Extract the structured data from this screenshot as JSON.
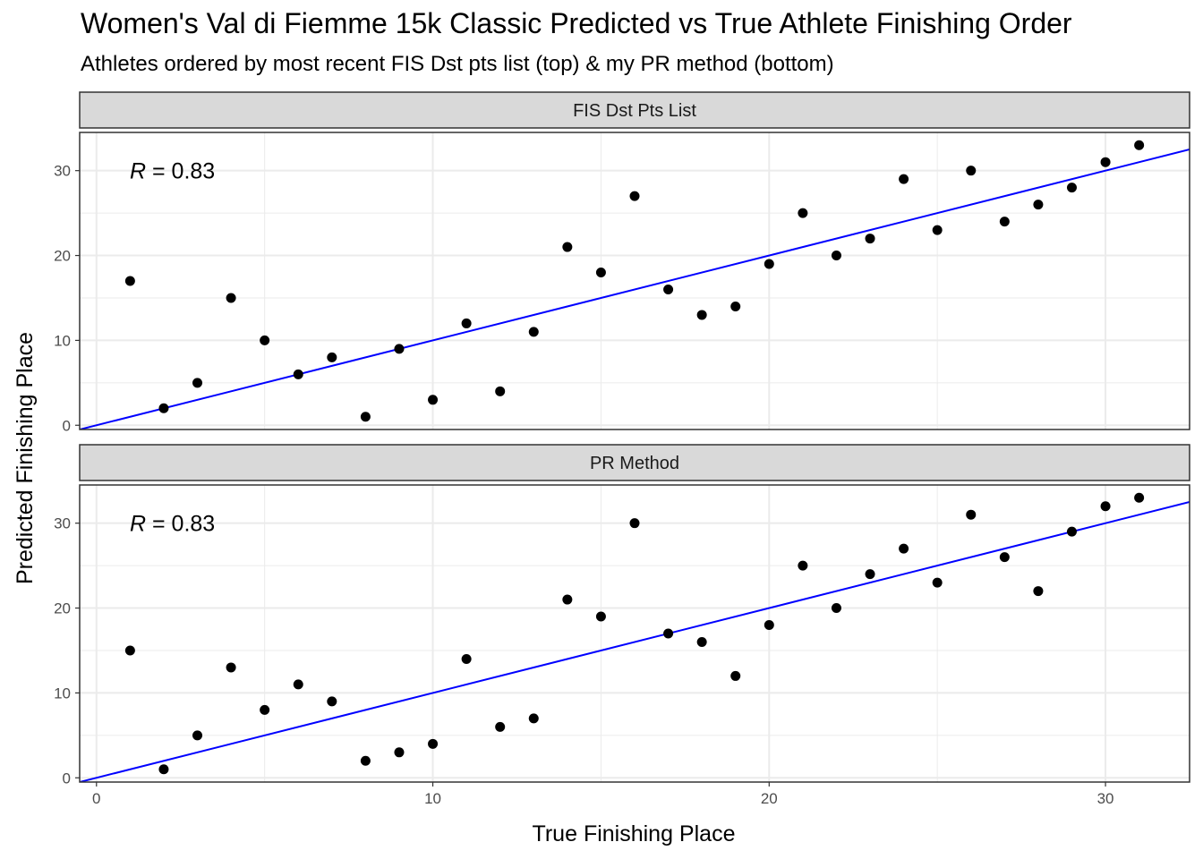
{
  "title": "Women's Val di Fiemme 15k Classic Predicted vs True Athlete Finishing Order",
  "subtitle": "Athletes ordered by most recent FIS Dst pts list (top) & my PR method (bottom)",
  "colors": {
    "fit_line": "#0000ff",
    "points": "#000000",
    "strip_fill": "#d9d9d9",
    "grid": "#ebebeb"
  },
  "chart_data": {
    "type": "scatter",
    "xlabel": "True Finishing Place",
    "ylabel": "Predicted Finishing Place",
    "xlim": [
      -0.5,
      32.5
    ],
    "ylim": [
      -0.5,
      34.5
    ],
    "x_ticks": [
      0,
      10,
      20,
      30
    ],
    "y_ticks": [
      0,
      10,
      20,
      30
    ],
    "grid": true,
    "panels": [
      {
        "name": "FIS Dst Pts List",
        "annotation": {
          "symbol": "R",
          "text": " = 0.83"
        },
        "fit_line": {
          "slope": 1,
          "intercept": 0
        },
        "x": [
          1,
          2,
          3,
          4,
          5,
          6,
          7,
          8,
          9,
          10,
          11,
          12,
          13,
          14,
          15,
          16,
          17,
          18,
          19,
          20,
          21,
          22,
          23,
          24,
          25,
          26,
          27,
          28,
          29,
          30,
          31
        ],
        "y": [
          17,
          2,
          5,
          15,
          10,
          6,
          8,
          1,
          9,
          3,
          12,
          4,
          11,
          21,
          18,
          27,
          16,
          13,
          14,
          19,
          25,
          20,
          22,
          29,
          23,
          30,
          24,
          26,
          28,
          31,
          33
        ]
      },
      {
        "name": "PR Method",
        "annotation": {
          "symbol": "R",
          "text": " = 0.83"
        },
        "fit_line": {
          "slope": 1,
          "intercept": 0
        },
        "x": [
          1,
          2,
          3,
          4,
          5,
          6,
          7,
          8,
          9,
          10,
          11,
          12,
          13,
          14,
          15,
          16,
          17,
          18,
          19,
          20,
          21,
          22,
          23,
          24,
          25,
          26,
          27,
          28,
          29,
          30,
          31
        ],
        "y": [
          15,
          1,
          5,
          13,
          8,
          11,
          9,
          2,
          3,
          4,
          14,
          6,
          7,
          21,
          19,
          30,
          17,
          16,
          12,
          18,
          25,
          20,
          24,
          27,
          23,
          31,
          26,
          22,
          29,
          32,
          33
        ]
      }
    ]
  }
}
